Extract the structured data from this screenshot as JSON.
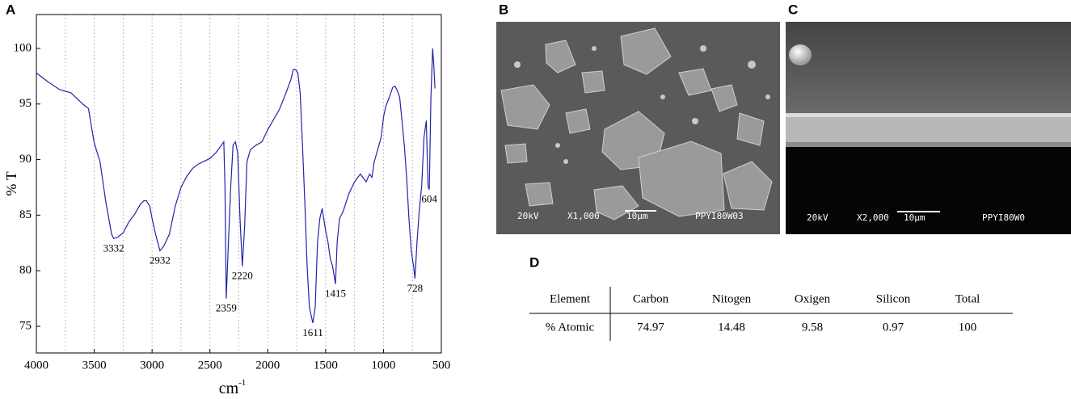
{
  "panels": {
    "a": "A",
    "b": "B",
    "c": "C",
    "d": "D"
  },
  "chart_data": {
    "type": "line",
    "xlabel": "cm",
    "xlabel_sup": "-1",
    "ylabel": "% T",
    "color": "#2424a8",
    "xlim": [
      4000,
      500
    ],
    "ylim": [
      72.6,
      103.05
    ],
    "xticks": [
      4000,
      3500,
      3000,
      2500,
      2000,
      1500,
      1000,
      500
    ],
    "yticks": [
      75,
      80,
      85,
      90,
      95,
      100
    ],
    "xgrid": [
      3750,
      3500,
      3250,
      3000,
      2750,
      2500,
      2250,
      2000,
      1750,
      1500,
      1250,
      1000,
      750
    ],
    "peaks": [
      3332,
      2932,
      2359,
      2220,
      1611,
      1415,
      728,
      604
    ],
    "x": [
      4000,
      3900,
      3800,
      3700,
      3600,
      3550,
      3500,
      3450,
      3400,
      3350,
      3332,
      3300,
      3250,
      3200,
      3150,
      3100,
      3070,
      3050,
      3020,
      3000,
      2970,
      2932,
      2900,
      2850,
      2800,
      2750,
      2700,
      2650,
      2600,
      2500,
      2450,
      2400,
      2380,
      2370,
      2359,
      2340,
      2320,
      2300,
      2280,
      2260,
      2240,
      2220,
      2200,
      2180,
      2150,
      2100,
      2050,
      2000,
      1950,
      1900,
      1850,
      1800,
      1780,
      1760,
      1740,
      1720,
      1700,
      1680,
      1660,
      1640,
      1611,
      1590,
      1570,
      1550,
      1530,
      1500,
      1480,
      1460,
      1440,
      1415,
      1400,
      1380,
      1350,
      1300,
      1250,
      1200,
      1150,
      1120,
      1100,
      1080,
      1050,
      1020,
      1000,
      980,
      950,
      920,
      900,
      880,
      860,
      840,
      820,
      800,
      780,
      760,
      740,
      728,
      710,
      690,
      670,
      650,
      630,
      615,
      604,
      590,
      575,
      565,
      555
    ],
    "values": [
      97.8,
      97.0,
      96.3,
      96.0,
      95.0,
      94.6,
      91.5,
      89.8,
      86.2,
      83.3,
      82.9,
      83.0,
      83.4,
      84.4,
      85.1,
      86.0,
      86.3,
      86.3,
      85.8,
      84.7,
      83.3,
      81.8,
      82.2,
      83.3,
      85.8,
      87.5,
      88.5,
      89.2,
      89.6,
      90.1,
      90.6,
      91.3,
      91.6,
      87.6,
      77.5,
      82.6,
      87.6,
      91.3,
      91.6,
      90.6,
      84.7,
      80.4,
      84.0,
      89.8,
      90.9,
      91.3,
      91.6,
      92.7,
      93.6,
      94.5,
      95.8,
      97.2,
      98.1,
      98.1,
      97.8,
      96.0,
      91.3,
      86.2,
      80.4,
      76.7,
      75.3,
      76.7,
      82.6,
      84.7,
      85.6,
      83.6,
      82.6,
      81.1,
      80.4,
      78.8,
      82.6,
      84.7,
      85.3,
      86.9,
      88.0,
      88.7,
      88.0,
      88.7,
      88.4,
      89.8,
      90.9,
      92.0,
      93.8,
      94.8,
      95.6,
      96.5,
      96.6,
      96.2,
      95.6,
      93.5,
      91.3,
      88.4,
      84.7,
      81.8,
      80.4,
      79.3,
      82.6,
      85.5,
      87.6,
      92.0,
      93.5,
      87.6,
      87.3,
      95.6,
      100,
      98.5,
      96.4
    ]
  },
  "sem_b": {
    "voltage": "20kV",
    "magnification": "X1,000",
    "scale": "10µm",
    "sample": "PPYI80W03"
  },
  "sem_c": {
    "voltage": "20kV",
    "magnification": "X2,000",
    "scale": "10µm",
    "sample": "PPYI80W0"
  },
  "table": {
    "header": [
      "Element",
      "Carbon",
      "Nitogen",
      "Oxigen",
      "Silicon",
      "Total"
    ],
    "rows": [
      [
        "% Atomic",
        "74.97",
        "14.48",
        "9.58",
        "0.97",
        "100"
      ]
    ]
  }
}
